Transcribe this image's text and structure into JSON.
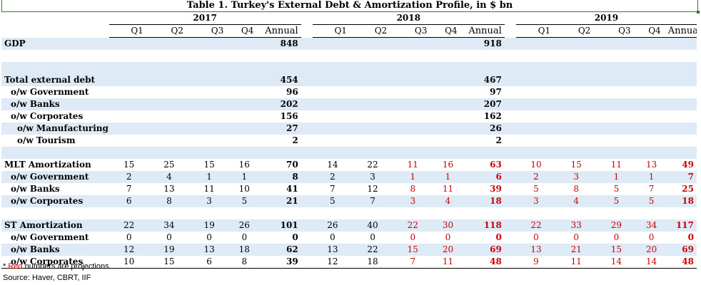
{
  "title": "Table 1. Turkey's External Debt & Amortization Profile, in $ bn",
  "years": [
    "2017",
    "2018",
    "2019"
  ],
  "quarter_headers": [
    "Q1",
    "Q2",
    "Q3",
    "Q4",
    "Annual"
  ],
  "colors": {
    "projection": "#cc0000",
    "shade": "#deebf7",
    "title_border": "#2e7d32"
  },
  "rows": [
    {
      "label": "GDP",
      "bold": true,
      "indent": 0,
      "shade": true,
      "cells": [
        {
          "v": ""
        },
        {
          "v": ""
        },
        {
          "v": ""
        },
        {
          "v": ""
        },
        {
          "v": "848"
        },
        {
          "v": ""
        },
        {
          "v": ""
        },
        {
          "v": ""
        },
        {
          "v": ""
        },
        {
          "v": "918"
        },
        {
          "v": ""
        },
        {
          "v": ""
        },
        {
          "v": ""
        },
        {
          "v": ""
        },
        {
          "v": ""
        }
      ]
    },
    {
      "spacer": true,
      "shade": false
    },
    {
      "spacer": true,
      "shade": true
    },
    {
      "label": "Total external debt",
      "bold": true,
      "indent": 0,
      "shade": true,
      "cells": [
        {
          "v": ""
        },
        {
          "v": ""
        },
        {
          "v": ""
        },
        {
          "v": ""
        },
        {
          "v": "454"
        },
        {
          "v": ""
        },
        {
          "v": ""
        },
        {
          "v": ""
        },
        {
          "v": ""
        },
        {
          "v": "467"
        },
        {
          "v": ""
        },
        {
          "v": ""
        },
        {
          "v": ""
        },
        {
          "v": ""
        },
        {
          "v": ""
        }
      ]
    },
    {
      "label": "o/w Government",
      "bold": true,
      "indent": 1,
      "shade": false,
      "cells": [
        {
          "v": ""
        },
        {
          "v": ""
        },
        {
          "v": ""
        },
        {
          "v": ""
        },
        {
          "v": "96"
        },
        {
          "v": ""
        },
        {
          "v": ""
        },
        {
          "v": ""
        },
        {
          "v": ""
        },
        {
          "v": "97"
        },
        {
          "v": ""
        },
        {
          "v": ""
        },
        {
          "v": ""
        },
        {
          "v": ""
        },
        {
          "v": ""
        }
      ]
    },
    {
      "label": "o/w Banks",
      "bold": true,
      "indent": 1,
      "shade": true,
      "cells": [
        {
          "v": ""
        },
        {
          "v": ""
        },
        {
          "v": ""
        },
        {
          "v": ""
        },
        {
          "v": "202"
        },
        {
          "v": ""
        },
        {
          "v": ""
        },
        {
          "v": ""
        },
        {
          "v": ""
        },
        {
          "v": "207"
        },
        {
          "v": ""
        },
        {
          "v": ""
        },
        {
          "v": ""
        },
        {
          "v": ""
        },
        {
          "v": ""
        }
      ]
    },
    {
      "label": "o/w Corporates",
      "bold": true,
      "indent": 1,
      "shade": false,
      "cells": [
        {
          "v": ""
        },
        {
          "v": ""
        },
        {
          "v": ""
        },
        {
          "v": ""
        },
        {
          "v": "156"
        },
        {
          "v": ""
        },
        {
          "v": ""
        },
        {
          "v": ""
        },
        {
          "v": ""
        },
        {
          "v": "162"
        },
        {
          "v": ""
        },
        {
          "v": ""
        },
        {
          "v": ""
        },
        {
          "v": ""
        },
        {
          "v": ""
        }
      ]
    },
    {
      "label": "o/w Manufacturing",
      "bold": true,
      "indent": 2,
      "shade": true,
      "cells": [
        {
          "v": ""
        },
        {
          "v": ""
        },
        {
          "v": ""
        },
        {
          "v": ""
        },
        {
          "v": "27"
        },
        {
          "v": ""
        },
        {
          "v": ""
        },
        {
          "v": ""
        },
        {
          "v": ""
        },
        {
          "v": "26"
        },
        {
          "v": ""
        },
        {
          "v": ""
        },
        {
          "v": ""
        },
        {
          "v": ""
        },
        {
          "v": ""
        }
      ]
    },
    {
      "label": "o/w Tourism",
      "bold": true,
      "indent": 2,
      "shade": false,
      "cells": [
        {
          "v": ""
        },
        {
          "v": ""
        },
        {
          "v": ""
        },
        {
          "v": ""
        },
        {
          "v": "2"
        },
        {
          "v": ""
        },
        {
          "v": ""
        },
        {
          "v": ""
        },
        {
          "v": ""
        },
        {
          "v": "2"
        },
        {
          "v": ""
        },
        {
          "v": ""
        },
        {
          "v": ""
        },
        {
          "v": ""
        },
        {
          "v": ""
        }
      ]
    },
    {
      "spacer": true,
      "shade": true
    },
    {
      "label": "MLT Amortization",
      "bold": true,
      "indent": 0,
      "shade": false,
      "cells": [
        {
          "v": "15"
        },
        {
          "v": "25"
        },
        {
          "v": "15"
        },
        {
          "v": "16"
        },
        {
          "v": "70"
        },
        {
          "v": "14"
        },
        {
          "v": "22"
        },
        {
          "v": "11",
          "proj": true
        },
        {
          "v": "16",
          "proj": true
        },
        {
          "v": "63",
          "proj": true
        },
        {
          "v": "10",
          "proj": true
        },
        {
          "v": "15",
          "proj": true
        },
        {
          "v": "11",
          "proj": true
        },
        {
          "v": "13",
          "proj": true
        },
        {
          "v": "49",
          "proj": true
        }
      ]
    },
    {
      "label": "o/w Government",
      "bold": true,
      "indent": 1,
      "shade": true,
      "cells": [
        {
          "v": "2"
        },
        {
          "v": "4"
        },
        {
          "v": "1"
        },
        {
          "v": "1"
        },
        {
          "v": "8"
        },
        {
          "v": "2"
        },
        {
          "v": "3"
        },
        {
          "v": "1",
          "proj": true
        },
        {
          "v": "1",
          "proj": true
        },
        {
          "v": "6",
          "proj": true
        },
        {
          "v": "2",
          "proj": true
        },
        {
          "v": "3",
          "proj": true
        },
        {
          "v": "1",
          "proj": true
        },
        {
          "v": "1",
          "proj": true
        },
        {
          "v": "7",
          "proj": true
        }
      ]
    },
    {
      "label": "o/w Banks",
      "bold": true,
      "indent": 1,
      "shade": false,
      "cells": [
        {
          "v": "7"
        },
        {
          "v": "13"
        },
        {
          "v": "11"
        },
        {
          "v": "10"
        },
        {
          "v": "41"
        },
        {
          "v": "7"
        },
        {
          "v": "12"
        },
        {
          "v": "8",
          "proj": true
        },
        {
          "v": "11",
          "proj": true
        },
        {
          "v": "39",
          "proj": true
        },
        {
          "v": "5",
          "proj": true
        },
        {
          "v": "8",
          "proj": true
        },
        {
          "v": "5",
          "proj": true
        },
        {
          "v": "7",
          "proj": true
        },
        {
          "v": "25",
          "proj": true
        }
      ]
    },
    {
      "label": "o/w Corporates",
      "bold": true,
      "indent": 1,
      "shade": true,
      "cells": [
        {
          "v": "6"
        },
        {
          "v": "8"
        },
        {
          "v": "3"
        },
        {
          "v": "5"
        },
        {
          "v": "21"
        },
        {
          "v": "5"
        },
        {
          "v": "7"
        },
        {
          "v": "3",
          "proj": true
        },
        {
          "v": "4",
          "proj": true
        },
        {
          "v": "18",
          "proj": true
        },
        {
          "v": "3",
          "proj": true
        },
        {
          "v": "4",
          "proj": true
        },
        {
          "v": "5",
          "proj": true
        },
        {
          "v": "5",
          "proj": true
        },
        {
          "v": "18",
          "proj": true
        }
      ]
    },
    {
      "spacer": true,
      "shade": false
    },
    {
      "label": "ST Amortization",
      "bold": true,
      "indent": 0,
      "shade": true,
      "cells": [
        {
          "v": "22"
        },
        {
          "v": "34"
        },
        {
          "v": "19"
        },
        {
          "v": "26"
        },
        {
          "v": "101"
        },
        {
          "v": "26"
        },
        {
          "v": "40"
        },
        {
          "v": "22",
          "proj": true
        },
        {
          "v": "30",
          "proj": true
        },
        {
          "v": "118",
          "proj": true
        },
        {
          "v": "22",
          "proj": true
        },
        {
          "v": "33",
          "proj": true
        },
        {
          "v": "29",
          "proj": true
        },
        {
          "v": "34",
          "proj": true
        },
        {
          "v": "117",
          "proj": true
        }
      ]
    },
    {
      "label": "o/w Government",
      "bold": true,
      "indent": 1,
      "shade": false,
      "cells": [
        {
          "v": "0"
        },
        {
          "v": "0"
        },
        {
          "v": "0"
        },
        {
          "v": "0"
        },
        {
          "v": "0"
        },
        {
          "v": "0"
        },
        {
          "v": "0"
        },
        {
          "v": "0",
          "proj": true
        },
        {
          "v": "0",
          "proj": true
        },
        {
          "v": "0",
          "proj": true
        },
        {
          "v": "0",
          "proj": true
        },
        {
          "v": "0",
          "proj": true
        },
        {
          "v": "0",
          "proj": true
        },
        {
          "v": "0",
          "proj": true
        },
        {
          "v": "0",
          "proj": true
        }
      ]
    },
    {
      "label": "o/w Banks",
      "bold": true,
      "indent": 1,
      "shade": true,
      "cells": [
        {
          "v": "12"
        },
        {
          "v": "19"
        },
        {
          "v": "13"
        },
        {
          "v": "18"
        },
        {
          "v": "62"
        },
        {
          "v": "13"
        },
        {
          "v": "22"
        },
        {
          "v": "15",
          "proj": true
        },
        {
          "v": "20",
          "proj": true
        },
        {
          "v": "69",
          "proj": true
        },
        {
          "v": "13",
          "proj": true
        },
        {
          "v": "21",
          "proj": true
        },
        {
          "v": "15",
          "proj": true
        },
        {
          "v": "20",
          "proj": true
        },
        {
          "v": "69",
          "proj": true
        }
      ]
    },
    {
      "label": "o/w Corporates",
      "bold": true,
      "indent": 1,
      "shade": false,
      "last": true,
      "cells": [
        {
          "v": "10"
        },
        {
          "v": "15"
        },
        {
          "v": "6"
        },
        {
          "v": "8"
        },
        {
          "v": "39"
        },
        {
          "v": "12"
        },
        {
          "v": "18"
        },
        {
          "v": "7",
          "proj": true
        },
        {
          "v": "11",
          "proj": true
        },
        {
          "v": "48",
          "proj": true
        },
        {
          "v": "9",
          "proj": true
        },
        {
          "v": "11",
          "proj": true
        },
        {
          "v": "14",
          "proj": true
        },
        {
          "v": "14",
          "proj": true
        },
        {
          "v": "48",
          "proj": true
        }
      ]
    }
  ],
  "notes": {
    "asterisk": "* ",
    "red_word": "Red",
    "projection_rest": " numbers are projections.",
    "source": "Source: Haver, CBRT, IIF"
  }
}
